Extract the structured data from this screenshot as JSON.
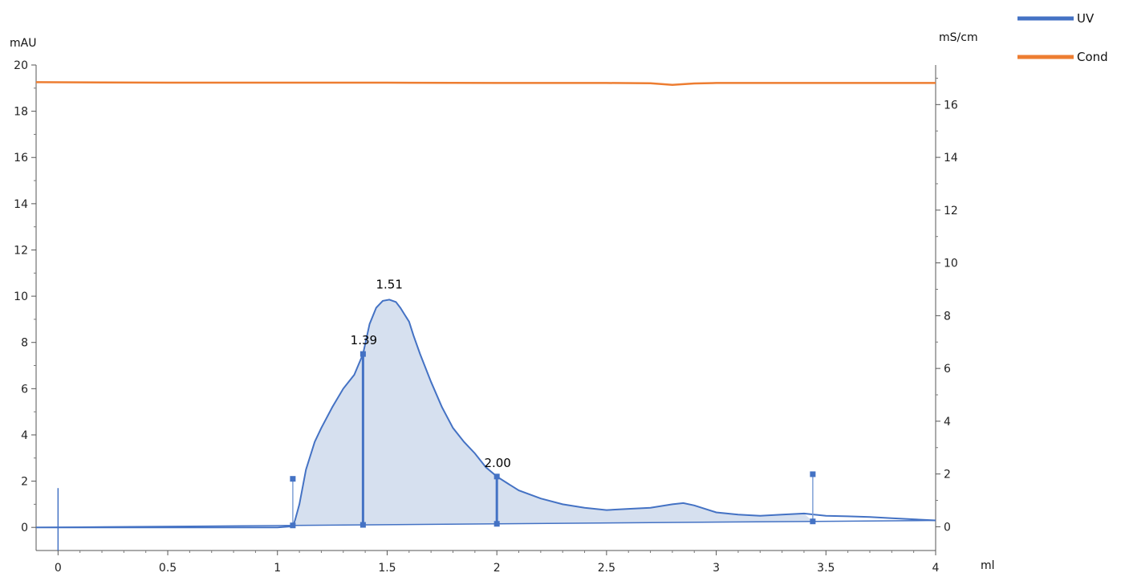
{
  "chart_data": {
    "type": "line",
    "x_unit": "ml",
    "y_left_unit": "mAU",
    "y_right_unit": "mS/cm",
    "x_ticks": [
      "0",
      "0.5",
      "1",
      "1.5",
      "2",
      "2.5",
      "3",
      "3.5",
      "4"
    ],
    "y_left_ticks": [
      "0",
      "2",
      "4",
      "6",
      "8",
      "10",
      "12",
      "14",
      "16",
      "18",
      "20"
    ],
    "y_right_ticks": [
      "0",
      "2",
      "4",
      "6",
      "8",
      "10",
      "12",
      "14",
      "16"
    ],
    "x_range": [
      -0.1,
      4.0
    ],
    "y_left_range": [
      -1,
      20
    ],
    "y_right_range": [
      -0.9,
      17.5
    ],
    "legend": {
      "position": "top-right",
      "entries": [
        "UV",
        "Cond"
      ]
    },
    "series": [
      {
        "name": "UV",
        "axis": "left",
        "color": "#4472c4",
        "fill": true,
        "x": [
          -0.1,
          0.0,
          0.5,
          1.0,
          1.07,
          1.08,
          1.1,
          1.13,
          1.17,
          1.2,
          1.25,
          1.3,
          1.35,
          1.39,
          1.42,
          1.45,
          1.48,
          1.51,
          1.54,
          1.56,
          1.58,
          1.6,
          1.62,
          1.65,
          1.7,
          1.75,
          1.8,
          1.85,
          1.9,
          1.95,
          2.0,
          2.05,
          2.1,
          2.2,
          2.3,
          2.4,
          2.5,
          2.6,
          2.7,
          2.8,
          2.85,
          2.9,
          3.0,
          3.1,
          3.2,
          3.3,
          3.4,
          3.5,
          3.6,
          3.7,
          3.8,
          3.9,
          4.0
        ],
        "y": [
          0.0,
          0.0,
          0.0,
          0.0,
          0.05,
          0.3,
          1.0,
          2.5,
          3.7,
          4.3,
          5.2,
          6.0,
          6.6,
          7.5,
          8.8,
          9.5,
          9.8,
          9.85,
          9.75,
          9.5,
          9.2,
          8.9,
          8.3,
          7.5,
          6.3,
          5.2,
          4.3,
          3.7,
          3.2,
          2.6,
          2.2,
          1.9,
          1.6,
          1.25,
          1.0,
          0.85,
          0.75,
          0.8,
          0.85,
          1.0,
          1.05,
          0.95,
          0.65,
          0.55,
          0.5,
          0.55,
          0.6,
          0.5,
          0.48,
          0.45,
          0.4,
          0.35,
          0.3
        ]
      },
      {
        "name": "Cond",
        "axis": "right",
        "color": "#ed7d31",
        "x": [
          -0.1,
          0.5,
          1.0,
          1.5,
          2.0,
          2.5,
          2.7,
          2.8,
          2.9,
          3.0,
          3.5,
          4.0
        ],
        "y": [
          16.85,
          16.83,
          16.83,
          16.83,
          16.82,
          16.82,
          16.81,
          16.75,
          16.8,
          16.82,
          16.82,
          16.82
        ]
      }
    ],
    "peaks": [
      {
        "label": "1.39",
        "x": 1.39,
        "y": 7.5,
        "marker": "drop-line"
      },
      {
        "label": "1.51",
        "x": 1.51,
        "y": 9.85,
        "marker": "apex"
      },
      {
        "label": "2.00",
        "x": 2.0,
        "y": 2.2,
        "marker": "drop-line"
      }
    ],
    "baseline": {
      "x": [
        -0.1,
        4.0
      ],
      "y": [
        0.0,
        0.3
      ]
    },
    "markers": [
      {
        "x": 1.07,
        "y": 2.1
      },
      {
        "x": 3.44,
        "y": 2.3
      }
    ],
    "injection_marker": {
      "x": 0.0,
      "y": 1.7
    }
  }
}
